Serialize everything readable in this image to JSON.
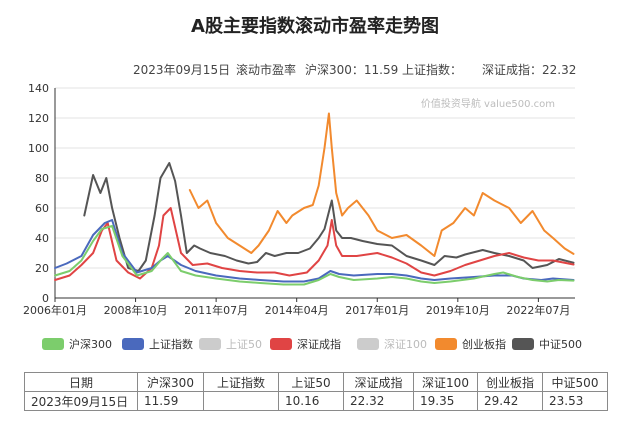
{
  "title": "A股主要指数滚动市盈率走势图",
  "subtitle": {
    "date": "2023年09月15日",
    "metric": "滚动市盈率",
    "hs300": "沪深300：11.59",
    "sz_label": "上证指数：",
    "szcz": "深证成指：22.32"
  },
  "colors": {
    "hs300": "#7ccd6c",
    "sz": "#4a69bd",
    "sz50": "#c8c8c8",
    "szcz": "#e04444",
    "sz100": "#c8c8c8",
    "cyb": "#f28a2e",
    "zz500": "#555555"
  },
  "chart_data": {
    "type": "line",
    "watermark": "价值投资导航 value500.com",
    "y_ticks": [
      "0",
      "20",
      "40",
      "60",
      "80",
      "100",
      "120",
      "140"
    ],
    "ylim": [
      0,
      140
    ],
    "x_ticks": [
      "2006年01月",
      "2008年10月",
      "2011年07月",
      "2014年04月",
      "2017年01月",
      "2019年10月",
      "2022年07月"
    ],
    "xlim": [
      2006.0,
      2023.75
    ],
    "grid": "horizontal",
    "legend": [
      {
        "label": "沪深300",
        "color": "#7ccd6c",
        "dimmed": false
      },
      {
        "label": "上证指数",
        "color": "#4a69bd",
        "dimmed": false
      },
      {
        "label": "上证50",
        "color": "#cccccc",
        "dimmed": true
      },
      {
        "label": "深证成指",
        "color": "#e04444",
        "dimmed": false
      },
      {
        "label": "深证100",
        "color": "#cccccc",
        "dimmed": true
      },
      {
        "label": "创业板指",
        "color": "#f28a2e",
        "dimmed": false
      },
      {
        "label": "中证500",
        "color": "#555555",
        "dimmed": false
      }
    ],
    "series": [
      {
        "name": "中证500",
        "color": "#555555",
        "x": [
          2007.0,
          2007.3,
          2007.55,
          2007.75,
          2007.95,
          2008.2,
          2008.5,
          2008.85,
          2009.1,
          2009.4,
          2009.6,
          2009.75,
          2009.9,
          2010.1,
          2010.3,
          2010.5,
          2010.75,
          2010.95,
          2011.3,
          2011.8,
          2012.2,
          2012.6,
          2012.9,
          2013.2,
          2013.5,
          2013.9,
          2014.3,
          2014.7,
          2015.0,
          2015.2,
          2015.45,
          2015.6,
          2015.8,
          2016.1,
          2016.5,
          2017.0,
          2017.5,
          2018.0,
          2018.5,
          2018.95,
          2019.3,
          2019.7,
          2020.0,
          2020.6,
          2021.0,
          2021.5,
          2022.0,
          2022.3,
          2022.8,
          2023.2,
          2023.7
        ],
        "y": [
          55,
          82,
          70,
          80,
          60,
          40,
          20,
          18,
          25,
          55,
          80,
          85,
          90,
          78,
          55,
          30,
          35,
          33,
          30,
          28,
          25,
          23,
          24,
          30,
          28,
          30,
          30,
          33,
          40,
          46,
          65,
          45,
          40,
          40,
          38,
          36,
          35,
          28,
          25,
          22,
          28,
          27,
          29,
          32,
          30,
          28,
          25,
          20,
          22,
          26,
          23.53
        ]
      },
      {
        "name": "创业板指",
        "color": "#f28a2e",
        "x": [
          2010.6,
          2010.9,
          2011.2,
          2011.5,
          2011.9,
          2012.3,
          2012.7,
          2012.95,
          2013.3,
          2013.6,
          2013.9,
          2014.1,
          2014.5,
          2014.8,
          2015.0,
          2015.2,
          2015.35,
          2015.45,
          2015.6,
          2015.8,
          2016.0,
          2016.3,
          2016.7,
          2017.0,
          2017.5,
          2018.0,
          2018.5,
          2018.95,
          2019.2,
          2019.6,
          2020.0,
          2020.3,
          2020.6,
          2021.0,
          2021.5,
          2021.9,
          2022.3,
          2022.7,
          2023.0,
          2023.4,
          2023.7
        ],
        "y": [
          72,
          60,
          65,
          50,
          40,
          35,
          30,
          35,
          45,
          58,
          50,
          55,
          60,
          62,
          75,
          100,
          123,
          100,
          70,
          55,
          60,
          65,
          55,
          45,
          40,
          42,
          35,
          28,
          45,
          50,
          60,
          55,
          70,
          65,
          60,
          50,
          58,
          45,
          40,
          33,
          29.42
        ]
      },
      {
        "name": "深证成指",
        "color": "#e04444",
        "x": [
          2006.0,
          2006.5,
          2006.9,
          2007.3,
          2007.6,
          2007.8,
          2008.1,
          2008.5,
          2008.9,
          2009.3,
          2009.55,
          2009.7,
          2009.95,
          2010.3,
          2010.7,
          2011.2,
          2011.7,
          2012.3,
          2012.9,
          2013.5,
          2014.0,
          2014.6,
          2015.0,
          2015.3,
          2015.45,
          2015.6,
          2015.8,
          2016.3,
          2017.0,
          2017.5,
          2018.0,
          2018.5,
          2018.95,
          2019.5,
          2020.0,
          2020.5,
          2021.0,
          2021.5,
          2022.0,
          2022.5,
          2023.0,
          2023.7
        ],
        "y": [
          12,
          15,
          22,
          30,
          45,
          50,
          25,
          17,
          13,
          20,
          35,
          55,
          60,
          30,
          22,
          23,
          20,
          18,
          17,
          17,
          15,
          17,
          25,
          35,
          52,
          35,
          28,
          28,
          30,
          27,
          23,
          17,
          15,
          18,
          22,
          25,
          28,
          30,
          27,
          25,
          25,
          22.32
        ]
      },
      {
        "name": "上证指数",
        "color": "#4a69bd",
        "x": [
          2006.0,
          2006.4,
          2006.9,
          2007.3,
          2007.7,
          2007.95,
          2008.3,
          2008.8,
          2009.3,
          2009.6,
          2009.85,
          2010.3,
          2010.8,
          2011.5,
          2012.3,
          2013.0,
          2013.8,
          2014.5,
          2015.0,
          2015.4,
          2015.7,
          2016.2,
          2017.0,
          2017.5,
          2018.0,
          2018.5,
          2018.95,
          2019.5,
          2020.3,
          2021.0,
          2021.6,
          2022.0,
          2022.6,
          2023.0,
          2023.7
        ],
        "y": [
          20,
          23,
          28,
          42,
          50,
          52,
          30,
          17,
          20,
          25,
          28,
          22,
          18,
          15,
          13,
          12,
          11,
          11,
          13,
          18,
          16,
          15,
          16,
          16,
          15,
          13,
          12,
          13,
          14,
          15,
          15,
          13,
          12,
          13,
          12
        ]
      },
      {
        "name": "沪深300",
        "color": "#7ccd6c",
        "x": [
          2006.0,
          2006.5,
          2006.9,
          2007.3,
          2007.6,
          2007.95,
          2008.3,
          2008.8,
          2009.3,
          2009.65,
          2009.85,
          2010.3,
          2010.8,
          2011.5,
          2012.3,
          2013.0,
          2013.8,
          2014.5,
          2015.0,
          2015.4,
          2015.7,
          2016.2,
          2017.0,
          2017.5,
          2018.0,
          2018.5,
          2018.95,
          2019.5,
          2020.3,
          2021.0,
          2021.3,
          2021.8,
          2022.3,
          2022.8,
          2023.2,
          2023.7
        ],
        "y": [
          15,
          18,
          25,
          38,
          46,
          48,
          28,
          15,
          18,
          26,
          30,
          18,
          15,
          13,
          11,
          10,
          9,
          9,
          12,
          16,
          14,
          12,
          13,
          14,
          13,
          11,
          10,
          11,
          13,
          16,
          17,
          14,
          12,
          11,
          12,
          11.59
        ]
      }
    ]
  },
  "table": {
    "headers": [
      "日期",
      "沪深300",
      "上证指数",
      "上证50",
      "深证成指",
      "深证100",
      "创业板指",
      "中证500"
    ],
    "values": [
      "2023年09月15日",
      "11.59",
      "",
      "10.16",
      "22.32",
      "19.35",
      "29.42",
      "23.53"
    ]
  }
}
